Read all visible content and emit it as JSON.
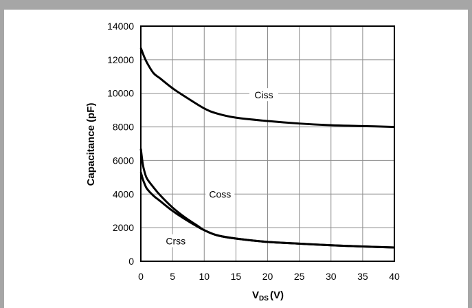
{
  "chart_data": {
    "type": "line",
    "title": "",
    "ylabel": "Capacitance (pF)",
    "xlabel": {
      "main": "V",
      "sub": "DS",
      "unit": "(V)"
    },
    "xlim": [
      0,
      40
    ],
    "ylim": [
      0,
      14000
    ],
    "x_ticks": [
      0,
      5,
      10,
      15,
      20,
      25,
      30,
      35,
      40
    ],
    "y_ticks": [
      0,
      2000,
      4000,
      6000,
      8000,
      10000,
      12000,
      14000
    ],
    "grid": true,
    "series": [
      {
        "name": "Ciss",
        "x": [
          0,
          0.5,
          1,
          2,
          3,
          5,
          7,
          10,
          12,
          15,
          20,
          25,
          30,
          35,
          40
        ],
        "y": [
          12700,
          12200,
          11800,
          11200,
          10900,
          10300,
          9800,
          9100,
          8800,
          8550,
          8350,
          8200,
          8100,
          8050,
          8000
        ]
      },
      {
        "name": "Coss",
        "x": [
          0,
          0.3,
          0.6,
          1,
          2,
          3,
          5,
          7,
          9,
          10,
          12,
          15,
          20,
          25,
          30,
          35,
          40
        ],
        "y": [
          6700,
          5800,
          5300,
          4900,
          4400,
          3950,
          3200,
          2600,
          2100,
          1850,
          1550,
          1350,
          1150,
          1050,
          950,
          880,
          820
        ]
      },
      {
        "name": "Crss",
        "x": [
          0,
          0.3,
          0.6,
          1,
          2,
          3,
          5,
          7,
          9,
          10,
          12,
          15,
          20,
          25,
          30,
          35,
          40
        ],
        "y": [
          5300,
          4900,
          4600,
          4300,
          3900,
          3600,
          3000,
          2500,
          2050,
          1850,
          1550,
          1350,
          1150,
          1050,
          950,
          880,
          820
        ]
      }
    ],
    "curve_labels": [
      {
        "text": "Ciss",
        "x": 19.4,
        "y": 9900
      },
      {
        "text": "Coss",
        "x": 12.5,
        "y": 4000
      },
      {
        "text": "Crss",
        "x": 5.5,
        "y": 1200
      }
    ]
  }
}
